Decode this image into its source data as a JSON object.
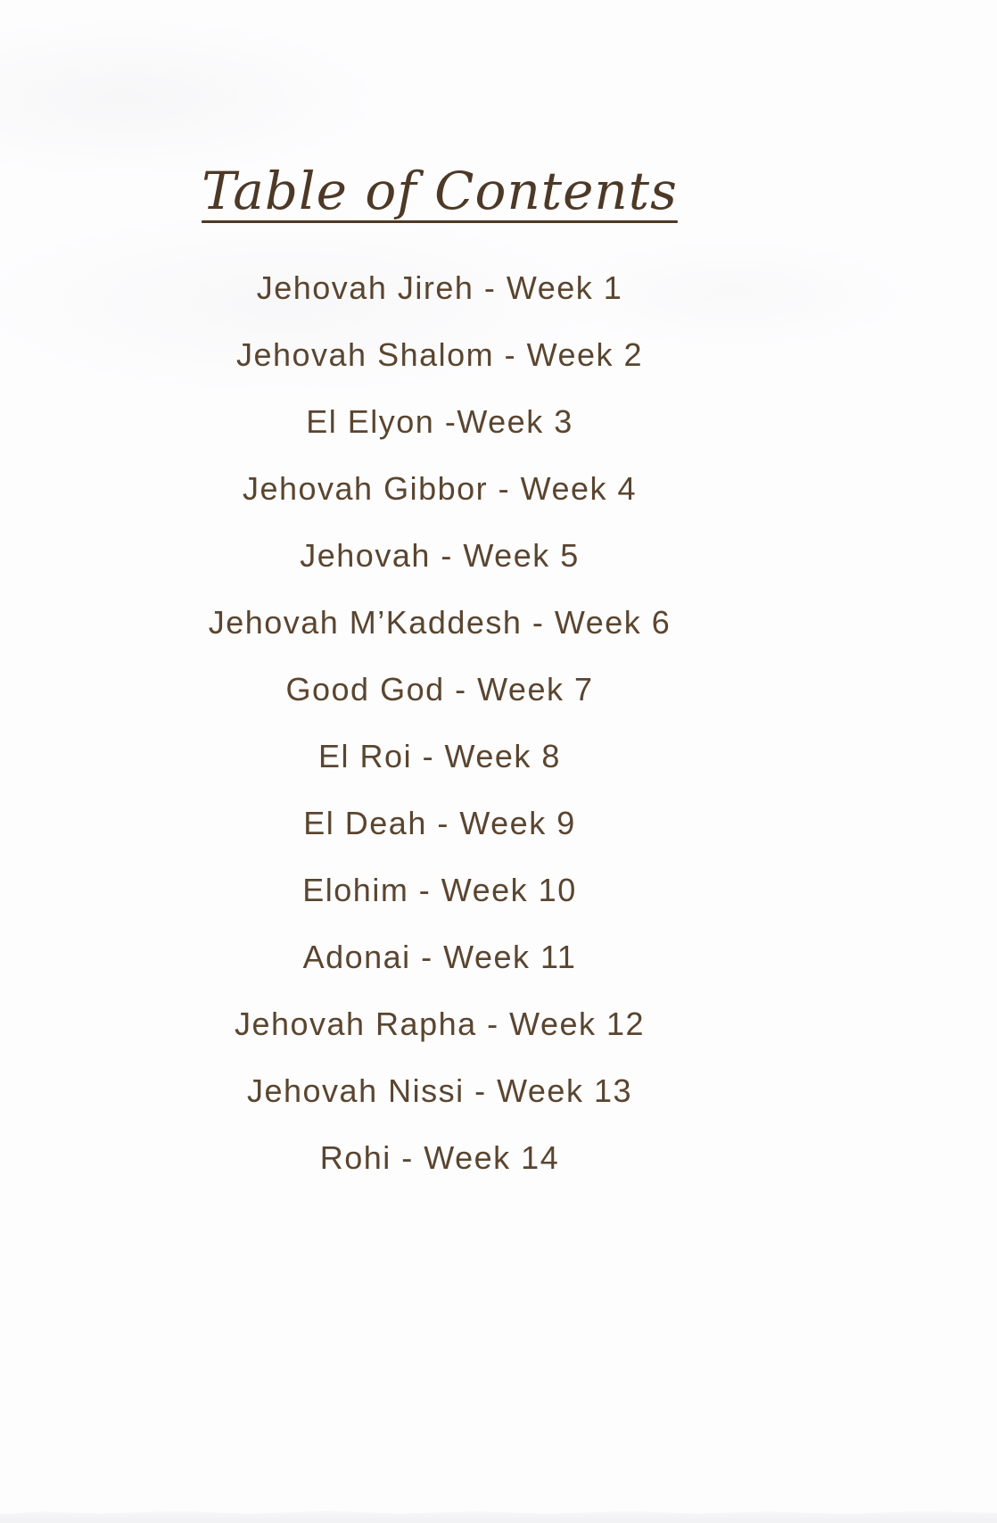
{
  "toc": {
    "title": "Table of Contents",
    "entries": [
      "Jehovah Jireh - Week 1",
      "Jehovah Shalom - Week 2",
      "El Elyon -Week 3",
      "Jehovah Gibbor - Week 4",
      "Jehovah - Week 5",
      "Jehovah M’Kaddesh - Week 6",
      "Good God - Week 7",
      "El Roi - Week 8",
      "El Deah - Week 9",
      "Elohim - Week 10",
      "Adonai - Week 11",
      "Jehovah Rapha - Week 12",
      "Jehovah Nissi - Week 13",
      "Rohi - Week 14"
    ],
    "colors": {
      "title_text": "#4d3926",
      "entry_text": "#5a452f",
      "background": "#fdfdfe",
      "page_edge": "#f4f4f6"
    }
  }
}
